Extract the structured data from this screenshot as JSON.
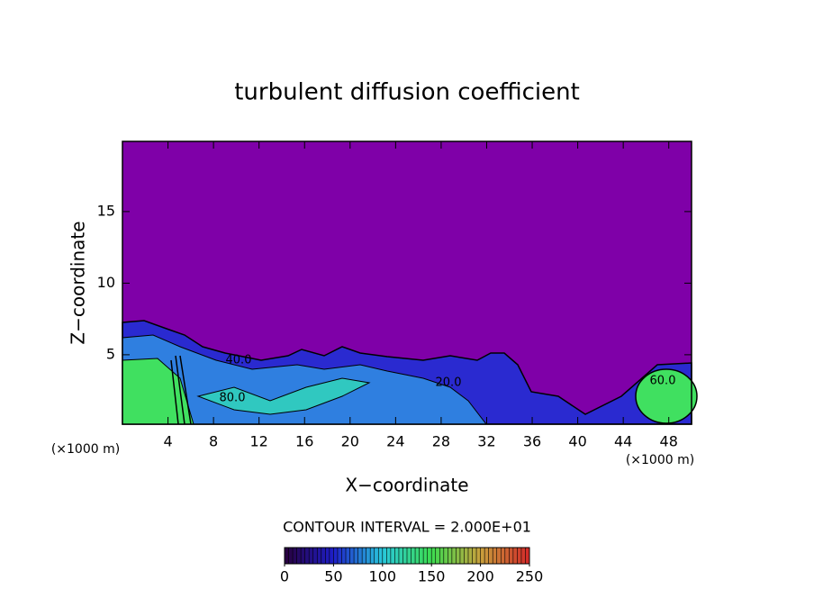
{
  "chart_data": {
    "type": "contour",
    "title": "turbulent diffusion coefficient",
    "x_label": "X−coordinate",
    "y_label": "Z−coordinate",
    "x_unit": "(×1000 m)",
    "x_unit_right": "(×1000 m)",
    "xlim": [
      0,
      50
    ],
    "xticks": [
      4,
      8,
      12,
      16,
      20,
      24,
      28,
      32,
      36,
      40,
      44,
      48
    ],
    "ylim": [
      0.15,
      19.9
    ],
    "yticks": [
      5,
      10,
      15
    ],
    "contour_interval_text": "CONTOUR INTERVAL = 2.000E+01",
    "contour_labels": [
      "40.0",
      "80.0",
      "20.0",
      "60.0"
    ],
    "colorbar": {
      "lim": [
        0,
        250
      ],
      "ticks": [
        0,
        50,
        100,
        150,
        200,
        250
      ]
    }
  }
}
